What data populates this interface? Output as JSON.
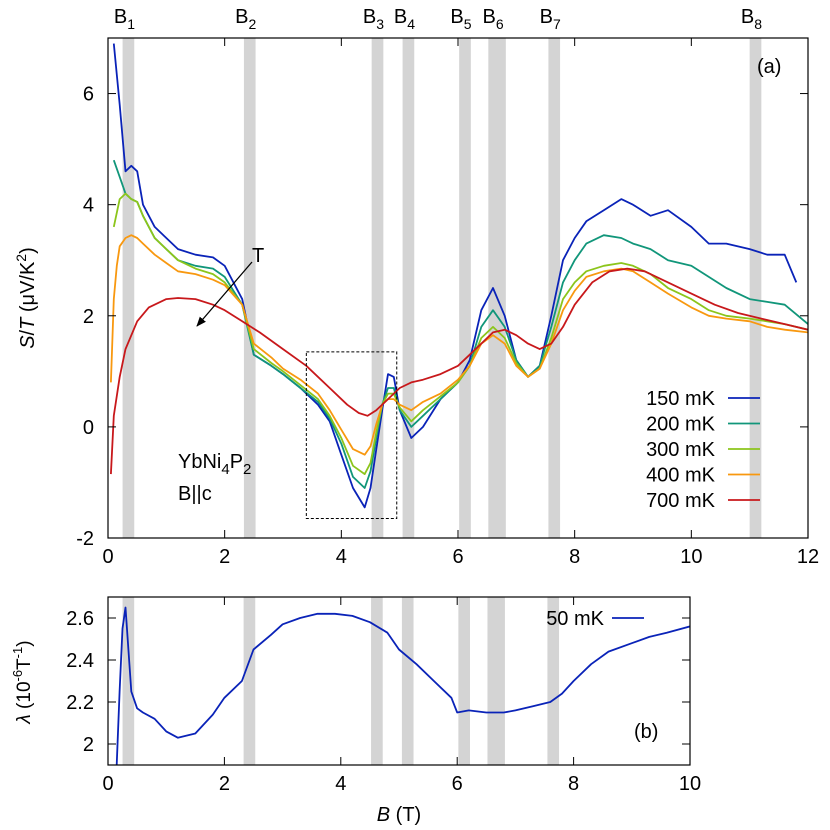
{
  "chart_data": [
    {
      "type": "line",
      "panel_label": "(a)",
      "xlabel": "",
      "ylabel": "S/T (µV/K²)",
      "ylabel_parts": {
        "main": "S/T (μV/K",
        "sup": "2",
        "end": ")"
      },
      "xlim": [
        0,
        12
      ],
      "ylim": [
        -2,
        7
      ],
      "x_ticks": [
        "0",
        "2",
        "4",
        "6",
        "8",
        "10",
        "12"
      ],
      "y_ticks": [
        "-2",
        "0",
        "2",
        "4",
        "6"
      ],
      "grid": false,
      "legend_position": "bottom-right",
      "sample_label": {
        "line1_main": "YbNi",
        "line1_sub1": "4",
        "line1_mid": "P",
        "line1_sub2": "2",
        "line2": "B||c"
      },
      "arrow_label": "T",
      "series": [
        {
          "name": "150 mK",
          "color": "#0a23b8",
          "x": [
            0.1,
            0.2,
            0.3,
            0.4,
            0.5,
            0.6,
            0.8,
            1.0,
            1.2,
            1.5,
            1.8,
            2.0,
            2.3,
            2.5,
            2.8,
            3.0,
            3.3,
            3.6,
            3.8,
            4.0,
            4.2,
            4.4,
            4.5,
            4.6,
            4.7,
            4.8,
            4.9,
            5.0,
            5.2,
            5.4,
            5.7,
            6.0,
            6.2,
            6.4,
            6.6,
            6.8,
            7.0,
            7.2,
            7.4,
            7.6,
            7.8,
            8.0,
            8.2,
            8.5,
            8.8,
            9.0,
            9.3,
            9.6,
            10.0,
            10.3,
            10.6,
            11.0,
            11.3,
            11.6,
            11.8
          ],
          "y": [
            6.9,
            5.8,
            4.6,
            4.7,
            4.6,
            4.0,
            3.6,
            3.4,
            3.2,
            3.1,
            3.05,
            2.9,
            2.3,
            1.3,
            1.1,
            0.95,
            0.7,
            0.4,
            0.1,
            -0.5,
            -1.1,
            -1.45,
            -1.1,
            -0.4,
            0.3,
            0.95,
            0.9,
            0.3,
            -0.2,
            0.0,
            0.5,
            0.8,
            1.2,
            2.1,
            2.5,
            2.0,
            1.2,
            0.9,
            1.1,
            2.0,
            3.0,
            3.4,
            3.7,
            3.9,
            4.1,
            4.0,
            3.8,
            3.9,
            3.6,
            3.3,
            3.3,
            3.2,
            3.1,
            3.1,
            2.6
          ]
        },
        {
          "name": "200 mK",
          "color": "#11967a",
          "x": [
            0.1,
            0.2,
            0.3,
            0.4,
            0.5,
            0.6,
            0.8,
            1.0,
            1.2,
            1.5,
            1.8,
            2.0,
            2.3,
            2.5,
            2.8,
            3.0,
            3.3,
            3.6,
            3.8,
            4.0,
            4.2,
            4.4,
            4.5,
            4.6,
            4.7,
            4.8,
            4.9,
            5.0,
            5.2,
            5.4,
            5.7,
            6.0,
            6.2,
            6.4,
            6.6,
            6.8,
            7.0,
            7.2,
            7.4,
            7.6,
            7.8,
            8.0,
            8.2,
            8.5,
            8.8,
            9.0,
            9.3,
            9.6,
            10.0,
            10.3,
            10.6,
            11.0,
            11.3,
            11.6,
            12.0
          ],
          "y": [
            4.8,
            4.5,
            4.2,
            4.1,
            4.05,
            3.8,
            3.4,
            3.2,
            3.0,
            2.9,
            2.85,
            2.7,
            2.2,
            1.3,
            1.1,
            0.95,
            0.7,
            0.45,
            0.15,
            -0.3,
            -0.9,
            -1.1,
            -0.8,
            -0.2,
            0.4,
            0.7,
            0.7,
            0.3,
            0.0,
            0.2,
            0.5,
            0.8,
            1.1,
            1.8,
            2.1,
            1.8,
            1.2,
            0.9,
            1.1,
            1.8,
            2.6,
            3.0,
            3.3,
            3.45,
            3.4,
            3.3,
            3.2,
            3.0,
            2.9,
            2.7,
            2.5,
            2.3,
            2.25,
            2.2,
            1.85
          ]
        },
        {
          "name": "300 mK",
          "color": "#8cc51b",
          "x": [
            0.1,
            0.2,
            0.3,
            0.4,
            0.5,
            0.6,
            0.8,
            1.0,
            1.2,
            1.5,
            1.8,
            2.0,
            2.3,
            2.5,
            2.8,
            3.0,
            3.3,
            3.6,
            3.8,
            4.0,
            4.2,
            4.4,
            4.5,
            4.6,
            4.7,
            4.8,
            4.9,
            5.0,
            5.2,
            5.4,
            5.7,
            6.0,
            6.2,
            6.4,
            6.6,
            6.8,
            7.0,
            7.2,
            7.4,
            7.6,
            7.8,
            8.0,
            8.2,
            8.5,
            8.8,
            9.0,
            9.3,
            9.6,
            10.0,
            10.3,
            10.6,
            11.0,
            11.3,
            11.6,
            12.0
          ],
          "y": [
            3.6,
            4.1,
            4.2,
            4.1,
            4.05,
            3.8,
            3.4,
            3.2,
            3.0,
            2.85,
            2.75,
            2.6,
            2.2,
            1.4,
            1.15,
            1.0,
            0.75,
            0.5,
            0.2,
            -0.2,
            -0.7,
            -0.85,
            -0.65,
            -0.1,
            0.4,
            0.6,
            0.6,
            0.35,
            0.1,
            0.3,
            0.55,
            0.8,
            1.1,
            1.6,
            1.8,
            1.6,
            1.15,
            0.9,
            1.05,
            1.6,
            2.3,
            2.6,
            2.8,
            2.9,
            2.95,
            2.9,
            2.75,
            2.5,
            2.3,
            2.1,
            2.0,
            1.95,
            1.9,
            1.85,
            1.75
          ]
        },
        {
          "name": "400 mK",
          "color": "#f8980f",
          "x": [
            0.05,
            0.1,
            0.15,
            0.2,
            0.3,
            0.4,
            0.5,
            0.6,
            0.8,
            1.0,
            1.2,
            1.5,
            1.8,
            2.0,
            2.3,
            2.5,
            2.8,
            3.0,
            3.3,
            3.6,
            3.8,
            4.0,
            4.2,
            4.4,
            4.5,
            4.6,
            4.7,
            4.8,
            4.9,
            5.0,
            5.2,
            5.4,
            5.7,
            6.0,
            6.2,
            6.4,
            6.6,
            6.8,
            7.0,
            7.2,
            7.4,
            7.6,
            7.8,
            8.0,
            8.2,
            8.5,
            8.8,
            9.0,
            9.3,
            9.6,
            10.0,
            10.3,
            10.6,
            11.0,
            11.3,
            11.6,
            12.0
          ],
          "y": [
            0.8,
            2.3,
            2.9,
            3.25,
            3.4,
            3.45,
            3.4,
            3.3,
            3.1,
            2.95,
            2.8,
            2.75,
            2.65,
            2.55,
            2.2,
            1.5,
            1.25,
            1.05,
            0.85,
            0.6,
            0.3,
            -0.05,
            -0.4,
            -0.5,
            -0.35,
            0.05,
            0.4,
            0.5,
            0.5,
            0.4,
            0.3,
            0.45,
            0.6,
            0.85,
            1.1,
            1.5,
            1.65,
            1.5,
            1.1,
            0.9,
            1.05,
            1.5,
            2.1,
            2.45,
            2.7,
            2.8,
            2.85,
            2.8,
            2.6,
            2.4,
            2.15,
            2.0,
            1.95,
            1.9,
            1.8,
            1.75,
            1.7
          ]
        },
        {
          "name": "700 mK",
          "color": "#c8181b",
          "x": [
            0.05,
            0.1,
            0.2,
            0.3,
            0.5,
            0.7,
            1.0,
            1.2,
            1.5,
            1.8,
            2.0,
            2.3,
            2.6,
            3.0,
            3.4,
            3.8,
            4.1,
            4.3,
            4.45,
            4.6,
            4.75,
            4.9,
            5.0,
            5.2,
            5.4,
            5.7,
            6.0,
            6.2,
            6.4,
            6.6,
            6.8,
            7.0,
            7.2,
            7.4,
            7.6,
            7.8,
            8.0,
            8.3,
            8.6,
            8.9,
            9.2,
            9.6,
            10.0,
            10.4,
            10.8,
            11.2,
            11.6,
            12.0
          ],
          "y": [
            -0.85,
            0.2,
            0.9,
            1.4,
            1.9,
            2.15,
            2.3,
            2.32,
            2.3,
            2.2,
            2.1,
            1.9,
            1.7,
            1.4,
            1.1,
            0.7,
            0.4,
            0.25,
            0.2,
            0.3,
            0.45,
            0.6,
            0.7,
            0.8,
            0.85,
            0.95,
            1.1,
            1.3,
            1.5,
            1.7,
            1.75,
            1.65,
            1.5,
            1.4,
            1.5,
            1.8,
            2.2,
            2.6,
            2.8,
            2.85,
            2.8,
            2.6,
            2.4,
            2.2,
            2.05,
            1.95,
            1.85,
            1.75
          ]
        }
      ]
    },
    {
      "type": "line",
      "panel_label": "(b)",
      "xlabel": "B (T)",
      "ylabel": "λ (10⁻⁶T⁻¹)",
      "ylabel_parts": {
        "main": "λ (10",
        "sup": "-6",
        "mid": "T",
        "sup2": "-1",
        "end": ")"
      },
      "xlim": [
        0,
        10
      ],
      "ylim": [
        1.9,
        2.7
      ],
      "x_ticks": [
        "0",
        "2",
        "4",
        "6",
        "8",
        "10"
      ],
      "y_ticks": [
        "2",
        "2.2",
        "2.4",
        "2.6"
      ],
      "grid": false,
      "legend_position": "top-right",
      "series": [
        {
          "name": "50 mK",
          "color": "#0a23b8",
          "x": [
            0.15,
            0.2,
            0.25,
            0.3,
            0.35,
            0.4,
            0.5,
            0.6,
            0.8,
            1.0,
            1.2,
            1.5,
            1.8,
            2.0,
            2.3,
            2.5,
            2.8,
            3.0,
            3.3,
            3.6,
            3.9,
            4.2,
            4.5,
            4.8,
            5.0,
            5.3,
            5.6,
            5.9,
            6.0,
            6.2,
            6.5,
            6.8,
            7.0,
            7.3,
            7.6,
            7.8,
            8.0,
            8.3,
            8.6,
            9.0,
            9.3,
            9.6,
            10.0
          ],
          "y": [
            1.9,
            2.25,
            2.55,
            2.65,
            2.45,
            2.25,
            2.17,
            2.15,
            2.12,
            2.06,
            2.03,
            2.05,
            2.14,
            2.22,
            2.3,
            2.45,
            2.52,
            2.57,
            2.6,
            2.62,
            2.62,
            2.61,
            2.58,
            2.53,
            2.45,
            2.38,
            2.3,
            2.22,
            2.15,
            2.16,
            2.15,
            2.15,
            2.16,
            2.18,
            2.2,
            2.24,
            2.3,
            2.38,
            2.44,
            2.48,
            2.51,
            2.53,
            2.56
          ]
        }
      ]
    }
  ],
  "bands": {
    "labels": [
      {
        "main": "B",
        "sub": "1"
      },
      {
        "main": "B",
        "sub": "2"
      },
      {
        "main": "B",
        "sub": "3"
      },
      {
        "main": "B",
        "sub": "4"
      },
      {
        "main": "B",
        "sub": "5"
      },
      {
        "main": "B",
        "sub": "6"
      },
      {
        "main": "B",
        "sub": "7"
      },
      {
        "main": "B",
        "sub": "8"
      }
    ],
    "ranges": [
      [
        0.25,
        0.45
      ],
      [
        2.33,
        2.53
      ],
      [
        4.52,
        4.72
      ],
      [
        5.05,
        5.25
      ],
      [
        6.02,
        6.22
      ],
      [
        6.52,
        6.82
      ],
      [
        7.55,
        7.75
      ],
      [
        11.0,
        11.2
      ]
    ],
    "color": "#d4d4d4"
  },
  "highlight_box": {
    "x_range": [
      3.4,
      4.95
    ],
    "y_range": [
      -1.65,
      1.35
    ]
  }
}
